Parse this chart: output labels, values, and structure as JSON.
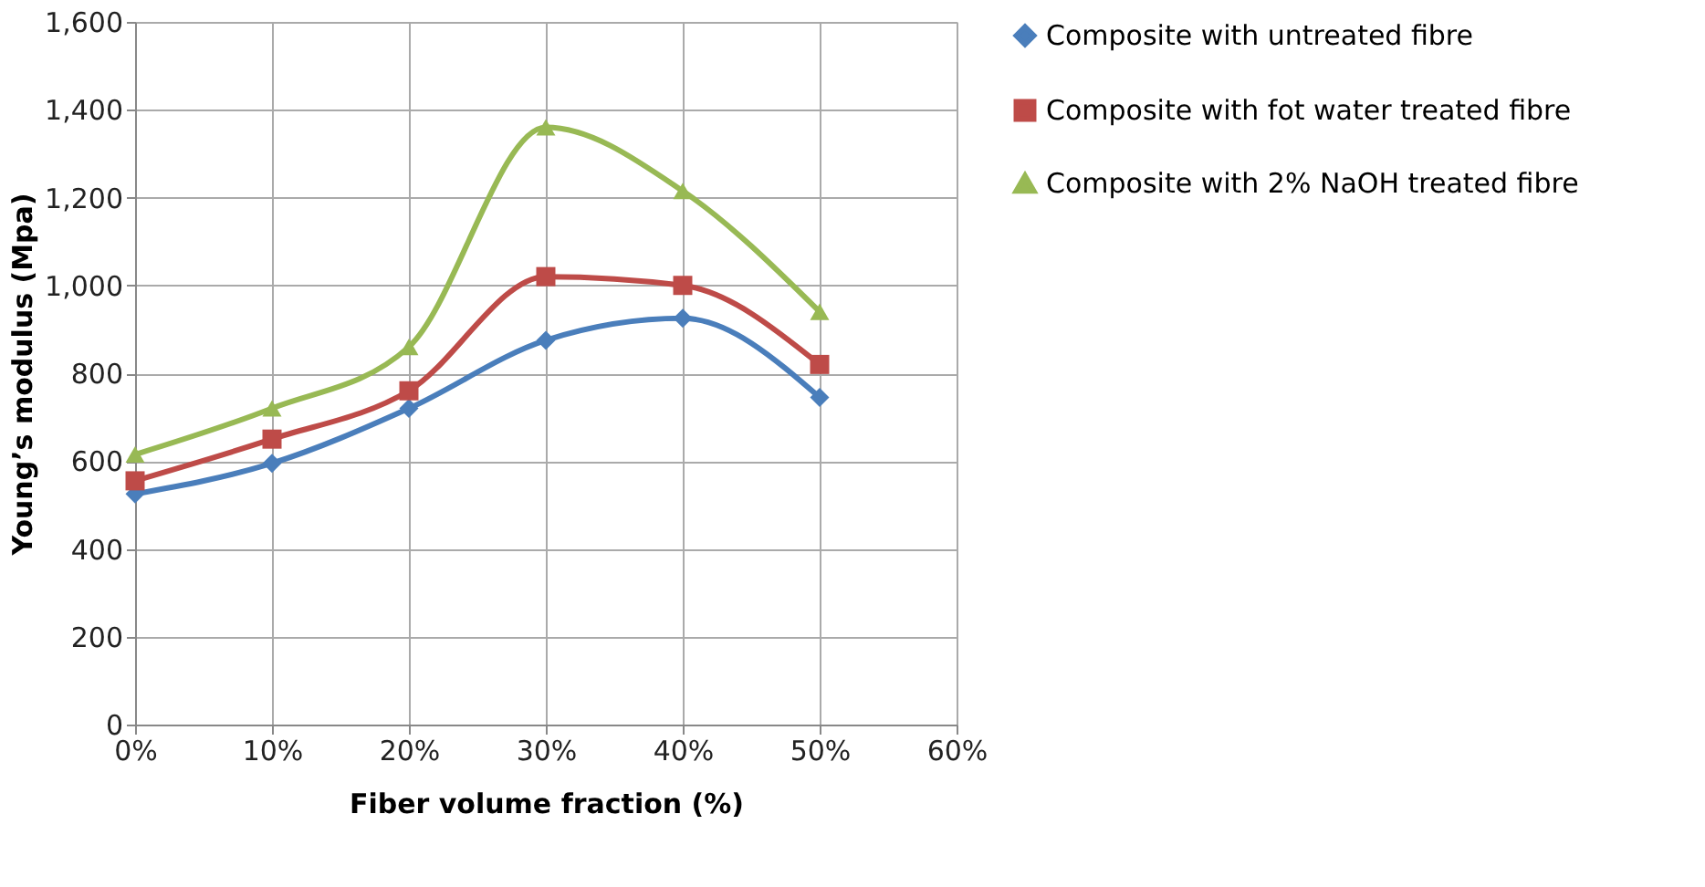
{
  "chart_data": {
    "type": "line",
    "xlabel": "Fiber volume fraction (%)",
    "ylabel": "Young’s modulus (Mpa)",
    "x": [
      0,
      10,
      20,
      30,
      40,
      50
    ],
    "xlim": [
      0,
      60
    ],
    "xticks": [
      {
        "value": 0,
        "label": "0%"
      },
      {
        "value": 10,
        "label": "10%"
      },
      {
        "value": 20,
        "label": "20%"
      },
      {
        "value": 30,
        "label": "30%"
      },
      {
        "value": 40,
        "label": "40%"
      },
      {
        "value": 50,
        "label": "50%"
      },
      {
        "value": 60,
        "label": "60%"
      }
    ],
    "ylim": [
      0,
      1600
    ],
    "yticks": [
      {
        "value": 0,
        "label": "0"
      },
      {
        "value": 200,
        "label": "200"
      },
      {
        "value": 400,
        "label": "400"
      },
      {
        "value": 600,
        "label": "600"
      },
      {
        "value": 800,
        "label": "800"
      },
      {
        "value": 1000,
        "label": "1,000"
      },
      {
        "value": 1200,
        "label": "1,200"
      },
      {
        "value": 1400,
        "label": "1,400"
      },
      {
        "value": 1600,
        "label": "1,600"
      }
    ],
    "grid": true,
    "legend": "right",
    "line_style": "solid",
    "series": [
      {
        "name": "Composite with untreated fibre",
        "color": "#4a7ebb",
        "marker": "diamond",
        "values": [
          525,
          595,
          720,
          875,
          925,
          745
        ]
      },
      {
        "name": "Composite with fot water treated fibre",
        "color": "#be4b48",
        "marker": "square",
        "values": [
          555,
          650,
          760,
          1020,
          1000,
          820
        ]
      },
      {
        "name": "Composite with 2% NaOH treated fibre",
        "color": "#98b954",
        "marker": "triangle",
        "values": [
          615,
          720,
          860,
          1360,
          1215,
          940
        ]
      }
    ]
  }
}
